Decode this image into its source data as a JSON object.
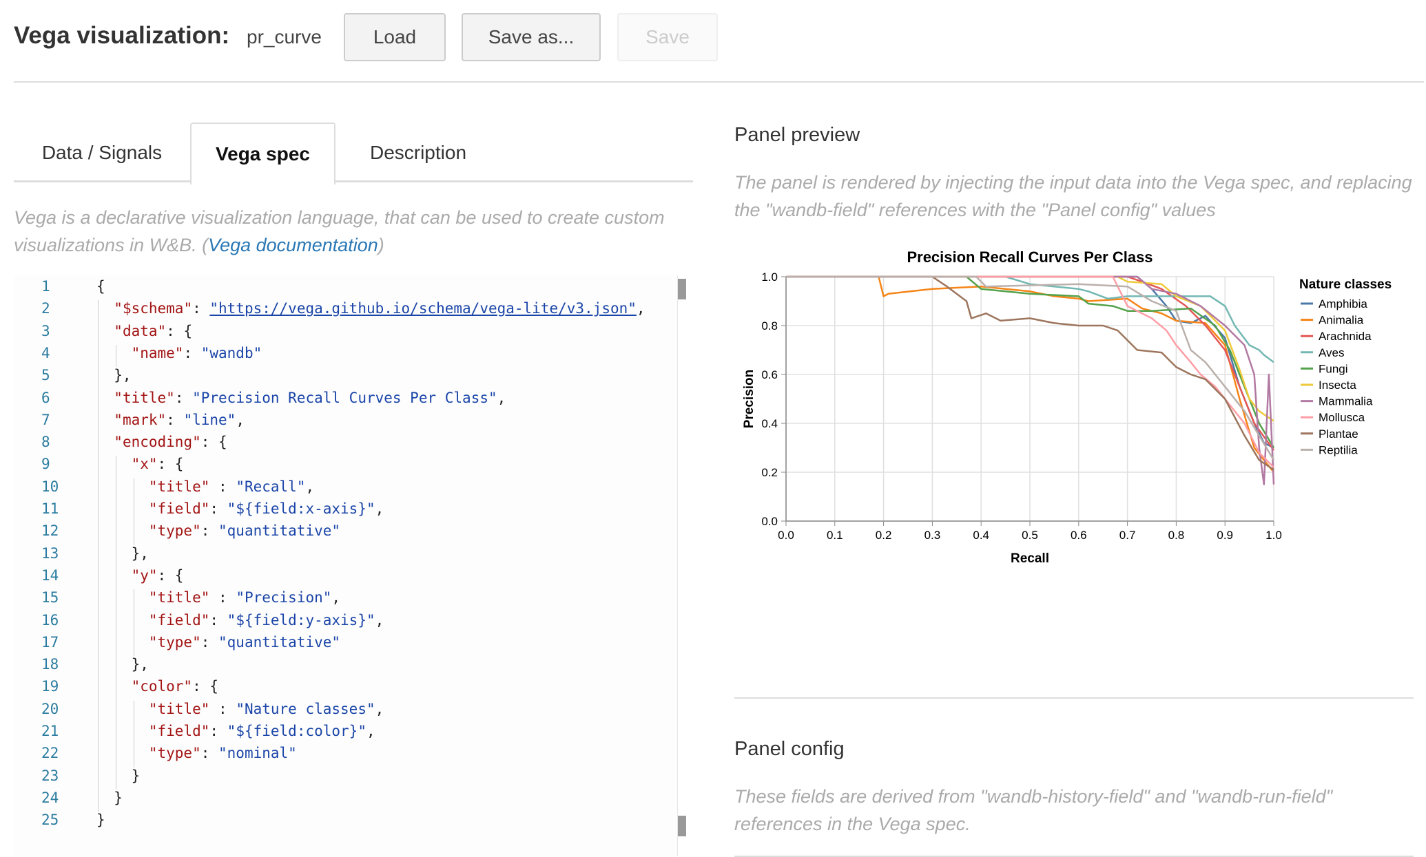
{
  "header": {
    "title": "Vega visualization:",
    "viz_name": "pr_curve",
    "load_label": "Load",
    "save_as_label": "Save as...",
    "save_label": "Save"
  },
  "tabs": [
    {
      "label": "Data / Signals"
    },
    {
      "label": "Vega spec",
      "active": true
    },
    {
      "label": "Description"
    }
  ],
  "left": {
    "description": "Vega is a declarative visualization language, that can be used to create custom visualizations in W&B. (",
    "doc_link": "Vega documentation",
    "description_end": ")"
  },
  "code_lines": [
    [
      [
        "p",
        "{"
      ]
    ],
    [
      [
        "p",
        "  "
      ],
      [
        "k",
        "\"$schema\""
      ],
      [
        "p",
        ": "
      ],
      [
        "u",
        "\"https://vega.github.io/schema/vega-lite/v3.json\""
      ],
      [
        "p",
        ","
      ]
    ],
    [
      [
        "p",
        "  "
      ],
      [
        "k",
        "\"data\""
      ],
      [
        "p",
        ": {"
      ]
    ],
    [
      [
        "p",
        "    "
      ],
      [
        "k",
        "\"name\""
      ],
      [
        "p",
        ": "
      ],
      [
        "s",
        "\"wandb\""
      ]
    ],
    [
      [
        "p",
        "  },"
      ]
    ],
    [
      [
        "p",
        "  "
      ],
      [
        "k",
        "\"title\""
      ],
      [
        "p",
        ": "
      ],
      [
        "s",
        "\"Precision Recall Curves Per Class\""
      ],
      [
        "p",
        ","
      ]
    ],
    [
      [
        "p",
        "  "
      ],
      [
        "k",
        "\"mark\""
      ],
      [
        "p",
        ": "
      ],
      [
        "s",
        "\"line\""
      ],
      [
        "p",
        ","
      ]
    ],
    [
      [
        "p",
        "  "
      ],
      [
        "k",
        "\"encoding\""
      ],
      [
        "p",
        ": {"
      ]
    ],
    [
      [
        "p",
        "    "
      ],
      [
        "k",
        "\"x\""
      ],
      [
        "p",
        ": {"
      ]
    ],
    [
      [
        "p",
        "      "
      ],
      [
        "k",
        "\"title\""
      ],
      [
        "p",
        " : "
      ],
      [
        "s",
        "\"Recall\""
      ],
      [
        "p",
        ","
      ]
    ],
    [
      [
        "p",
        "      "
      ],
      [
        "k",
        "\"field\""
      ],
      [
        "p",
        ": "
      ],
      [
        "s",
        "\"${field:x-axis}\""
      ],
      [
        "p",
        ","
      ]
    ],
    [
      [
        "p",
        "      "
      ],
      [
        "k",
        "\"type\""
      ],
      [
        "p",
        ": "
      ],
      [
        "s",
        "\"quantitative\""
      ]
    ],
    [
      [
        "p",
        "    },"
      ]
    ],
    [
      [
        "p",
        "    "
      ],
      [
        "k",
        "\"y\""
      ],
      [
        "p",
        ": {"
      ]
    ],
    [
      [
        "p",
        "      "
      ],
      [
        "k",
        "\"title\""
      ],
      [
        "p",
        " : "
      ],
      [
        "s",
        "\"Precision\""
      ],
      [
        "p",
        ","
      ]
    ],
    [
      [
        "p",
        "      "
      ],
      [
        "k",
        "\"field\""
      ],
      [
        "p",
        ": "
      ],
      [
        "s",
        "\"${field:y-axis}\""
      ],
      [
        "p",
        ","
      ]
    ],
    [
      [
        "p",
        "      "
      ],
      [
        "k",
        "\"type\""
      ],
      [
        "p",
        ": "
      ],
      [
        "s",
        "\"quantitative\""
      ]
    ],
    [
      [
        "p",
        "    },"
      ]
    ],
    [
      [
        "p",
        "    "
      ],
      [
        "k",
        "\"color\""
      ],
      [
        "p",
        ": {"
      ]
    ],
    [
      [
        "p",
        "      "
      ],
      [
        "k",
        "\"title\""
      ],
      [
        "p",
        " : "
      ],
      [
        "s",
        "\"Nature classes\""
      ],
      [
        "p",
        ","
      ]
    ],
    [
      [
        "p",
        "      "
      ],
      [
        "k",
        "\"field\""
      ],
      [
        "p",
        ": "
      ],
      [
        "s",
        "\"${field:color}\""
      ],
      [
        "p",
        ","
      ]
    ],
    [
      [
        "p",
        "      "
      ],
      [
        "k",
        "\"type\""
      ],
      [
        "p",
        ": "
      ],
      [
        "s",
        "\"nominal\""
      ]
    ],
    [
      [
        "p",
        "    }"
      ]
    ],
    [
      [
        "p",
        "  }"
      ]
    ],
    [
      [
        "p",
        "}"
      ]
    ]
  ],
  "right": {
    "preview_title": "Panel preview",
    "preview_desc": "The panel is rendered by injecting the input data into the Vega spec, and replacing the \"wandb-field\" references with the \"Panel config\" values",
    "config_title": "Panel config",
    "config_desc": "These fields are derived from \"wandb-history-field\" and \"wandb-run-field\" references in the Vega spec."
  },
  "chart_data": {
    "type": "line",
    "title": "Precision Recall Curves Per Class",
    "xlabel": "Recall",
    "ylabel": "Precision",
    "xlim": [
      0,
      1
    ],
    "ylim": [
      0,
      1
    ],
    "xticks": [
      "0.0",
      "0.1",
      "0.2",
      "0.3",
      "0.4",
      "0.5",
      "0.6",
      "0.7",
      "0.8",
      "0.9",
      "1.0"
    ],
    "yticks": [
      "0.0",
      "0.2",
      "0.4",
      "0.6",
      "0.8",
      "1.0"
    ],
    "grid": true,
    "legend_title": "Nature classes",
    "legend_position": "right",
    "series": [
      {
        "name": "Amphibia",
        "color": "#4c78a8",
        "points": [
          [
            0,
            1
          ],
          [
            0.72,
            1
          ],
          [
            0.75,
            0.95
          ],
          [
            0.78,
            0.88
          ],
          [
            0.8,
            0.82
          ],
          [
            0.83,
            0.81
          ],
          [
            0.86,
            0.84
          ],
          [
            0.9,
            0.75
          ],
          [
            0.93,
            0.55
          ],
          [
            0.96,
            0.4
          ],
          [
            0.98,
            0.32
          ],
          [
            1,
            0.3
          ]
        ]
      },
      {
        "name": "Animalia",
        "color": "#f58518",
        "points": [
          [
            0,
            1
          ],
          [
            0.19,
            1
          ],
          [
            0.2,
            0.92
          ],
          [
            0.21,
            0.93
          ],
          [
            0.3,
            0.95
          ],
          [
            0.4,
            0.96
          ],
          [
            0.5,
            0.94
          ],
          [
            0.55,
            0.92
          ],
          [
            0.6,
            0.91
          ],
          [
            0.62,
            0.9
          ],
          [
            0.7,
            0.91
          ],
          [
            0.73,
            0.87
          ],
          [
            0.77,
            0.85
          ],
          [
            0.8,
            0.82
          ],
          [
            0.86,
            0.81
          ],
          [
            0.9,
            0.72
          ],
          [
            0.93,
            0.5
          ],
          [
            0.96,
            0.3
          ],
          [
            0.98,
            0.25
          ],
          [
            1,
            0.2
          ]
        ]
      },
      {
        "name": "Arachnida",
        "color": "#e45756",
        "points": [
          [
            0,
            1
          ],
          [
            0.7,
            1
          ],
          [
            0.73,
            0.98
          ],
          [
            0.77,
            0.95
          ],
          [
            0.82,
            0.88
          ],
          [
            0.86,
            0.8
          ],
          [
            0.9,
            0.7
          ],
          [
            0.93,
            0.55
          ],
          [
            0.96,
            0.4
          ],
          [
            1,
            0.29
          ]
        ]
      },
      {
        "name": "Aves",
        "color": "#72b7b2",
        "points": [
          [
            0,
            1
          ],
          [
            0.45,
            1
          ],
          [
            0.5,
            0.97
          ],
          [
            0.6,
            0.95
          ],
          [
            0.62,
            0.94
          ],
          [
            0.66,
            0.91
          ],
          [
            0.7,
            0.92
          ],
          [
            0.87,
            0.92
          ],
          [
            0.9,
            0.88
          ],
          [
            0.92,
            0.8
          ],
          [
            0.95,
            0.72
          ],
          [
            0.97,
            0.7
          ],
          [
            0.98,
            0.68
          ],
          [
            1,
            0.65
          ]
        ]
      },
      {
        "name": "Fungi",
        "color": "#54a24b",
        "points": [
          [
            0,
            1
          ],
          [
            0.37,
            1
          ],
          [
            0.4,
            0.95
          ],
          [
            0.5,
            0.93
          ],
          [
            0.6,
            0.92
          ],
          [
            0.62,
            0.89
          ],
          [
            0.67,
            0.88
          ],
          [
            0.7,
            0.86
          ],
          [
            0.75,
            0.86
          ],
          [
            0.83,
            0.87
          ],
          [
            0.88,
            0.8
          ],
          [
            0.91,
            0.7
          ],
          [
            0.93,
            0.6
          ],
          [
            0.95,
            0.5
          ],
          [
            0.97,
            0.4
          ],
          [
            1,
            0.3
          ]
        ]
      },
      {
        "name": "Insecta",
        "color": "#eeca3b",
        "points": [
          [
            0,
            1
          ],
          [
            0.68,
            1
          ],
          [
            0.7,
            0.98
          ],
          [
            0.77,
            0.97
          ],
          [
            0.8,
            0.92
          ],
          [
            0.85,
            0.88
          ],
          [
            0.9,
            0.78
          ],
          [
            0.93,
            0.62
          ],
          [
            0.95,
            0.5
          ],
          [
            0.97,
            0.45
          ],
          [
            1,
            0.41
          ]
        ]
      },
      {
        "name": "Mammalia",
        "color": "#b279a2",
        "points": [
          [
            0,
            1
          ],
          [
            0.72,
            1
          ],
          [
            0.75,
            0.95
          ],
          [
            0.8,
            0.93
          ],
          [
            0.85,
            0.88
          ],
          [
            0.9,
            0.8
          ],
          [
            0.94,
            0.72
          ],
          [
            0.96,
            0.6
          ],
          [
            0.97,
            0.3
          ],
          [
            0.98,
            0.15
          ],
          [
            0.99,
            0.6
          ],
          [
            1,
            0.15
          ]
        ]
      },
      {
        "name": "Mollusca",
        "color": "#ff9da6",
        "points": [
          [
            0,
            1
          ],
          [
            0.67,
            1
          ],
          [
            0.7,
            0.88
          ],
          [
            0.75,
            0.83
          ],
          [
            0.78,
            0.78
          ],
          [
            0.8,
            0.72
          ],
          [
            0.83,
            0.65
          ],
          [
            0.85,
            0.6
          ],
          [
            0.88,
            0.55
          ],
          [
            0.9,
            0.5
          ],
          [
            0.94,
            0.4
          ],
          [
            0.97,
            0.28
          ],
          [
            1,
            0.22
          ]
        ]
      },
      {
        "name": "Plantae",
        "color": "#9d755d",
        "points": [
          [
            0,
            1
          ],
          [
            0.3,
            1
          ],
          [
            0.33,
            0.96
          ],
          [
            0.37,
            0.9
          ],
          [
            0.38,
            0.83
          ],
          [
            0.41,
            0.85
          ],
          [
            0.44,
            0.82
          ],
          [
            0.5,
            0.83
          ],
          [
            0.55,
            0.81
          ],
          [
            0.6,
            0.8
          ],
          [
            0.65,
            0.8
          ],
          [
            0.68,
            0.78
          ],
          [
            0.7,
            0.74
          ],
          [
            0.72,
            0.7
          ],
          [
            0.77,
            0.69
          ],
          [
            0.8,
            0.63
          ],
          [
            0.83,
            0.6
          ],
          [
            0.86,
            0.58
          ],
          [
            0.9,
            0.5
          ],
          [
            0.94,
            0.35
          ],
          [
            0.97,
            0.25
          ],
          [
            1,
            0.21
          ]
        ]
      },
      {
        "name": "Reptilia",
        "color": "#bab0ac",
        "points": [
          [
            0,
            1
          ],
          [
            0.39,
            1
          ],
          [
            0.41,
            0.96
          ],
          [
            0.6,
            0.97
          ],
          [
            0.7,
            0.96
          ],
          [
            0.75,
            0.9
          ],
          [
            0.8,
            0.86
          ],
          [
            0.83,
            0.7
          ],
          [
            0.86,
            0.65
          ],
          [
            0.9,
            0.55
          ],
          [
            0.94,
            0.45
          ],
          [
            0.97,
            0.35
          ],
          [
            1,
            0.25
          ]
        ]
      }
    ]
  }
}
